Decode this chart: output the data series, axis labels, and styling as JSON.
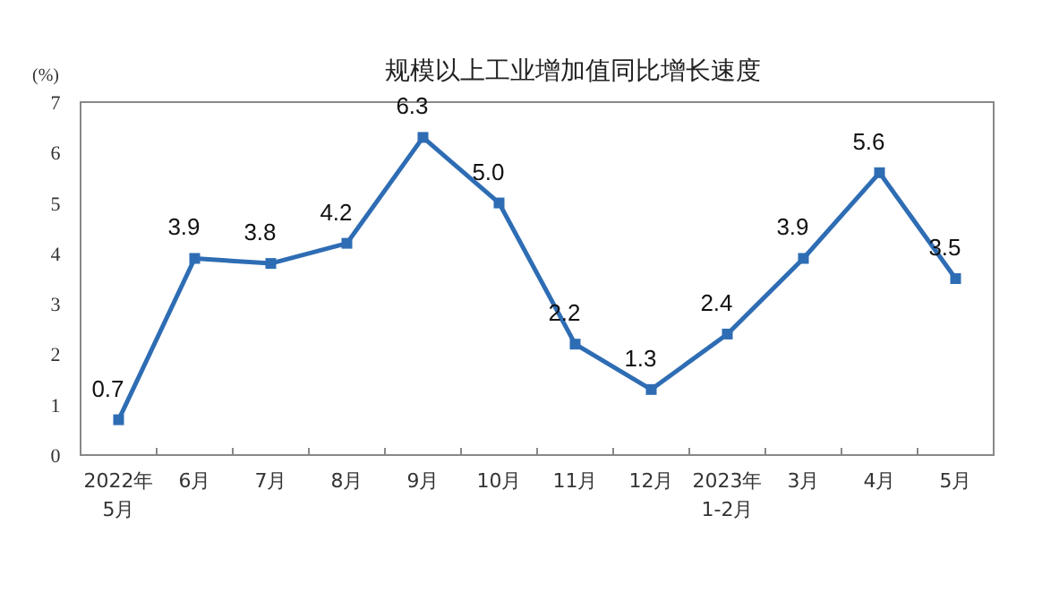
{
  "chart_data": {
    "type": "line",
    "title": "规模以上工业增加值同比增长速度",
    "ylabel": "(%)",
    "categories": [
      "2022年\n5月",
      "6月",
      "7月",
      "8月",
      "9月",
      "10月",
      "11月",
      "12月",
      "2023年\n1-2月",
      "3月",
      "4月",
      "5月"
    ],
    "series": [
      {
        "color": "#2e6db4",
        "values": [
          0.7,
          3.9,
          3.8,
          4.2,
          6.3,
          5.0,
          2.2,
          1.3,
          2.4,
          3.9,
          5.6,
          3.5
        ],
        "value_labels": [
          "0.7",
          "3.9",
          "3.8",
          "4.2",
          "6.3",
          "5.0",
          "2.2",
          "1.3",
          "2.4",
          "3.9",
          "5.6",
          "3.5"
        ]
      }
    ],
    "ylim": [
      0,
      7
    ],
    "yticks": [
      0,
      1,
      2,
      3,
      4,
      5,
      6,
      7
    ],
    "marker": "square",
    "line_style": "solid",
    "grid": false
  }
}
